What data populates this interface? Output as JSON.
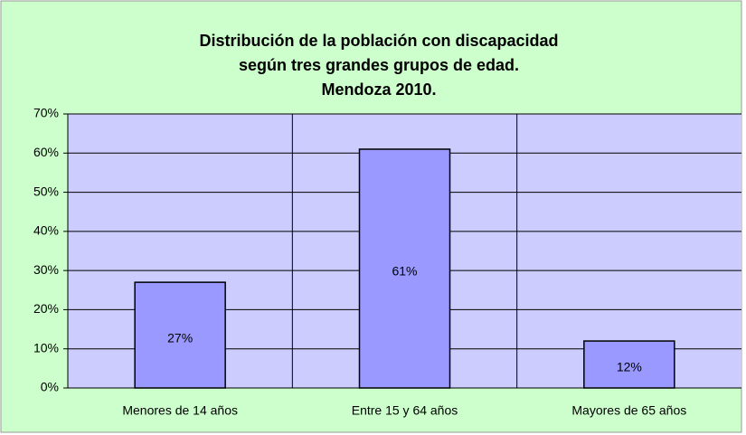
{
  "chart_data": {
    "type": "bar",
    "title": [
      "Distribución de la población con discapacidad",
      "según tres grandes grupos de edad.",
      "Mendoza 2010."
    ],
    "categories": [
      "Menores de 14 años",
      "Entre 15 y 64 años",
      "Mayores de 65 años"
    ],
    "values": [
      27,
      61,
      12
    ],
    "value_labels": [
      "27%",
      "61%",
      "12%"
    ],
    "color": "#9999ff",
    "ylim": [
      0,
      70
    ],
    "yticks": [
      {
        "value": 0,
        "label": "0%"
      },
      {
        "value": 10,
        "label": "10%"
      },
      {
        "value": 20,
        "label": "20%"
      },
      {
        "value": 30,
        "label": "30%"
      },
      {
        "value": 40,
        "label": "40%"
      },
      {
        "value": 50,
        "label": "50%"
      },
      {
        "value": 60,
        "label": "60%"
      },
      {
        "value": 70,
        "label": "70%"
      }
    ],
    "grid": true
  }
}
